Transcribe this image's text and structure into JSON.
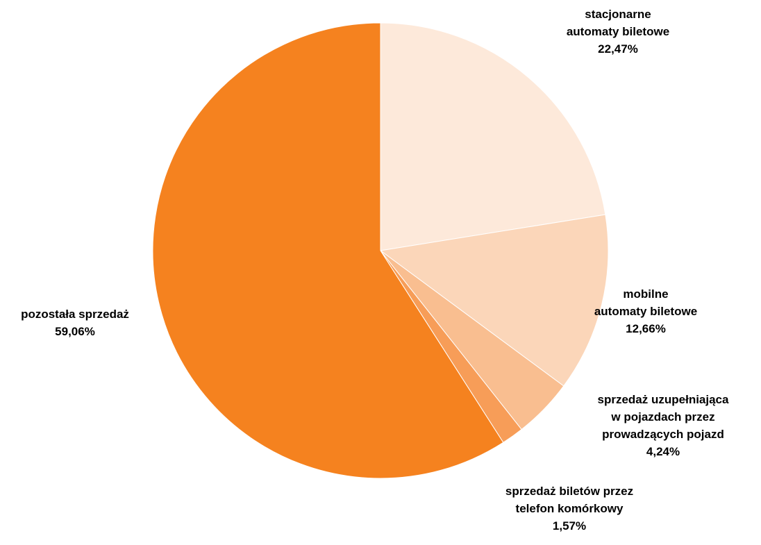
{
  "chart_data": {
    "type": "pie",
    "title": "",
    "start_angle_deg": 0,
    "direction": "clockwise",
    "legend": "none",
    "slices": [
      {
        "key": "stacjonarne",
        "label_lines": [
          "stacjonarne",
          "automaty biletowe"
        ],
        "value": 22.47,
        "value_label": "22,47%",
        "color": "#FDE9DA"
      },
      {
        "key": "mobilne",
        "label_lines": [
          "mobilne",
          "automaty biletowe"
        ],
        "value": 12.66,
        "value_label": "12,66%",
        "color": "#FBD6B9"
      },
      {
        "key": "uzupelniajaca",
        "label_lines": [
          "sprzedaż uzupełniająca",
          "w pojazdach przez",
          "prowadzących pojazd"
        ],
        "value": 4.24,
        "value_label": "4,24%",
        "color": "#F9BE90"
      },
      {
        "key": "telefon",
        "label_lines": [
          "sprzedaż biletów przez",
          "telefon komórkowy"
        ],
        "value": 1.57,
        "value_label": "1,57%",
        "color": "#F79D58"
      },
      {
        "key": "pozostala",
        "label_lines": [
          "pozostała sprzedaż"
        ],
        "value": 59.06,
        "value_label": "59,06%",
        "color": "#F5821F"
      }
    ]
  }
}
